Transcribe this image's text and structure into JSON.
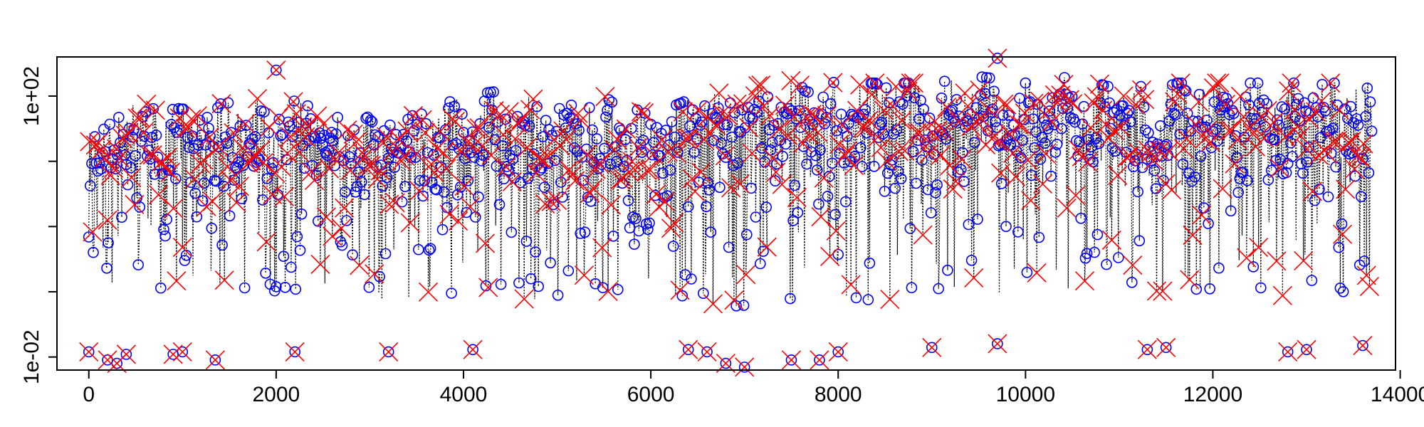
{
  "chart_data": {
    "type": "scatter",
    "title": "",
    "xlabel": "",
    "ylabel": "",
    "xlim": [
      -340,
      13950
    ],
    "ylim_log10": [
      -2.2,
      2.6
    ],
    "y_scale": "log",
    "grid": false,
    "legend": "none",
    "x_ticks": [
      {
        "value": 0,
        "label": "0"
      },
      {
        "value": 2000,
        "label": "2000"
      },
      {
        "value": 4000,
        "label": "4000"
      },
      {
        "value": 6000,
        "label": "6000"
      },
      {
        "value": 8000,
        "label": "8000"
      },
      {
        "value": 10000,
        "label": "10000"
      },
      {
        "value": 12000,
        "label": "12000"
      },
      {
        "value": 14000,
        "label": "14000"
      }
    ],
    "y_ticks": [
      {
        "value": 0.01,
        "label": "1e-02"
      },
      {
        "value": 0.1,
        "label": ""
      },
      {
        "value": 1,
        "label": ""
      },
      {
        "value": 10,
        "label": ""
      },
      {
        "value": 100,
        "label": "1e+02"
      }
    ],
    "n_points_approx": 13700,
    "x_range": [
      0,
      13700
    ],
    "series": [
      {
        "style": "dotted-line",
        "color": "#000000"
      },
      {
        "style": "circle",
        "color": "#0000ff"
      },
      {
        "style": "x-cross",
        "color": "#ff0000"
      }
    ],
    "envelope_upper_log10": [
      {
        "x": 0,
        "y": 1.3
      },
      {
        "x": 500,
        "y": 1.9
      },
      {
        "x": 1000,
        "y": 1.8
      },
      {
        "x": 1500,
        "y": 1.9
      },
      {
        "x": 2000,
        "y": 2.0
      },
      {
        "x": 2500,
        "y": 1.8
      },
      {
        "x": 3000,
        "y": 1.7
      },
      {
        "x": 3500,
        "y": 1.7
      },
      {
        "x": 4000,
        "y": 2.0
      },
      {
        "x": 4500,
        "y": 2.1
      },
      {
        "x": 5000,
        "y": 1.8
      },
      {
        "x": 5500,
        "y": 2.0
      },
      {
        "x": 6000,
        "y": 1.7
      },
      {
        "x": 6500,
        "y": 2.0
      },
      {
        "x": 7000,
        "y": 2.1
      },
      {
        "x": 7500,
        "y": 2.3
      },
      {
        "x": 8000,
        "y": 2.2
      },
      {
        "x": 8500,
        "y": 2.2
      },
      {
        "x": 9000,
        "y": 2.2
      },
      {
        "x": 9500,
        "y": 2.3
      },
      {
        "x": 10000,
        "y": 2.2
      },
      {
        "x": 10500,
        "y": 2.3
      },
      {
        "x": 11000,
        "y": 2.1
      },
      {
        "x": 11500,
        "y": 2.2
      },
      {
        "x": 12000,
        "y": 2.2
      },
      {
        "x": 12500,
        "y": 2.2
      },
      {
        "x": 13000,
        "y": 2.2
      },
      {
        "x": 13700,
        "y": 2.2
      }
    ],
    "envelope_lower_log10": [
      {
        "x": 0,
        "y": -0.8
      },
      {
        "x": 1000,
        "y": -1.1
      },
      {
        "x": 2000,
        "y": -1.0
      },
      {
        "x": 3000,
        "y": -1.1
      },
      {
        "x": 4000,
        "y": -1.2
      },
      {
        "x": 5000,
        "y": -1.1
      },
      {
        "x": 6000,
        "y": -1.0
      },
      {
        "x": 7000,
        "y": -1.3
      },
      {
        "x": 8000,
        "y": -1.2
      },
      {
        "x": 9000,
        "y": -1.1
      },
      {
        "x": 10000,
        "y": -1.0
      },
      {
        "x": 11000,
        "y": -1.0
      },
      {
        "x": 12000,
        "y": -1.0
      },
      {
        "x": 13000,
        "y": -1.1
      },
      {
        "x": 13700,
        "y": -1.1
      }
    ],
    "outliers": [
      {
        "x": 0,
        "y": 0.012
      },
      {
        "x": 200,
        "y": 0.009
      },
      {
        "x": 300,
        "y": 0.008
      },
      {
        "x": 400,
        "y": 0.011
      },
      {
        "x": 900,
        "y": 0.011
      },
      {
        "x": 1000,
        "y": 0.012
      },
      {
        "x": 1350,
        "y": 0.009
      },
      {
        "x": 2000,
        "y": 250
      },
      {
        "x": 2200,
        "y": 0.012
      },
      {
        "x": 3200,
        "y": 0.012
      },
      {
        "x": 4100,
        "y": 0.013
      },
      {
        "x": 6400,
        "y": 0.013
      },
      {
        "x": 6600,
        "y": 0.012
      },
      {
        "x": 6800,
        "y": 0.008
      },
      {
        "x": 7000,
        "y": 0.007
      },
      {
        "x": 7500,
        "y": 0.009
      },
      {
        "x": 7800,
        "y": 0.009
      },
      {
        "x": 8000,
        "y": 0.012
      },
      {
        "x": 9000,
        "y": 0.014
      },
      {
        "x": 9700,
        "y": 0.016
      },
      {
        "x": 9700,
        "y": 380
      },
      {
        "x": 11300,
        "y": 0.013
      },
      {
        "x": 11500,
        "y": 0.014
      },
      {
        "x": 12800,
        "y": 0.012
      },
      {
        "x": 13000,
        "y": 0.013
      },
      {
        "x": 13600,
        "y": 0.015
      }
    ]
  }
}
